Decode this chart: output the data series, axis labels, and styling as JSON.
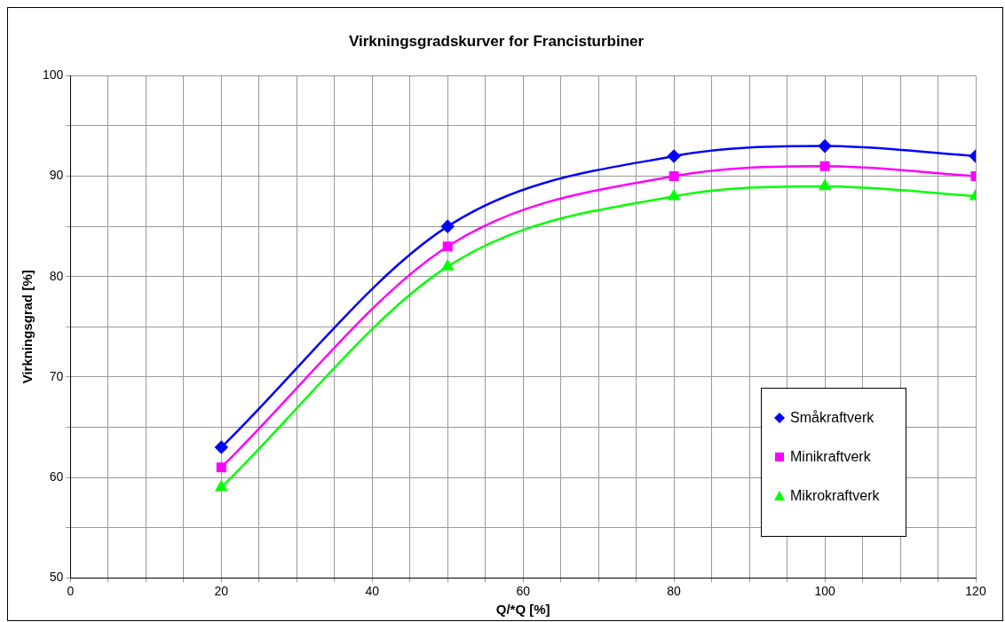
{
  "chart_data": {
    "type": "line",
    "title": "Virkningsgradskurver for Francisturbiner",
    "xlabel": "Q/*Q [%]",
    "ylabel": "Virkningsgrad [%]",
    "x": [
      20,
      50,
      80,
      100,
      120
    ],
    "series": [
      {
        "name": "Småkraftverk",
        "color": "#0000ff",
        "marker": "diamond",
        "values": [
          63,
          85,
          92,
          93,
          92
        ]
      },
      {
        "name": "Minikraftverk",
        "color": "#ff00ff",
        "marker": "square",
        "values": [
          61,
          83,
          90,
          91,
          90
        ]
      },
      {
        "name": "Mikrokraftverk",
        "color": "#00ff00",
        "marker": "triangle",
        "values": [
          59,
          81,
          88,
          89,
          88
        ]
      }
    ],
    "xlim": [
      0,
      120
    ],
    "ylim": [
      50,
      100
    ],
    "xticks": [
      0,
      {
        "value": 5,
        "label": null
      },
      {
        "value": 10,
        "label": null
      },
      {
        "value": 15,
        "label": null
      },
      20,
      {
        "value": 25,
        "label": null
      },
      {
        "value": 30,
        "label": null
      },
      {
        "value": 35,
        "label": null
      },
      40,
      {
        "value": 45,
        "label": null
      },
      {
        "value": 50,
        "label": null
      },
      {
        "value": 55,
        "label": null
      },
      60,
      {
        "value": 65,
        "label": null
      },
      {
        "value": 70,
        "label": null
      },
      {
        "value": 75,
        "label": null
      },
      80,
      {
        "value": 85,
        "label": null
      },
      {
        "value": 90,
        "label": null
      },
      {
        "value": 95,
        "label": null
      },
      100,
      {
        "value": 105,
        "label": null
      },
      {
        "value": 110,
        "label": null
      },
      {
        "value": 115,
        "label": null
      },
      120
    ],
    "yticks": [
      50,
      {
        "value": 55,
        "label": null
      },
      60,
      {
        "value": 65,
        "label": null
      },
      70,
      {
        "value": 75,
        "label": null
      },
      80,
      {
        "value": 85,
        "label": null
      },
      90,
      {
        "value": 95,
        "label": null
      },
      100
    ],
    "grid": true,
    "legend": "bottom right",
    "line_style": "solid"
  }
}
